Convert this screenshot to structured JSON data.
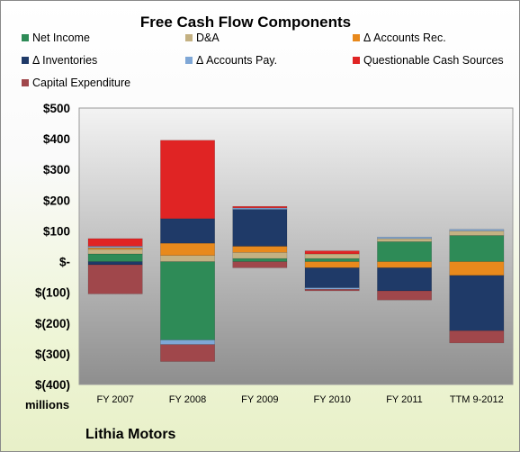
{
  "chart_data": {
    "type": "bar",
    "stacked": true,
    "title": "Free Cash Flow Components",
    "categories": [
      "FY 2007",
      "FY 2008",
      "FY 2009",
      "FY 2010",
      "FY 2011",
      "TTM 9-2012"
    ],
    "series": [
      {
        "name": "Net Income",
        "color": "#2e8b57",
        "values": [
          25,
          -255,
          10,
          10,
          65,
          85
        ]
      },
      {
        "name": "D&A",
        "color": "#c4b182",
        "values": [
          15,
          20,
          20,
          15,
          10,
          15
        ]
      },
      {
        "name": "Δ Accounts Rec.",
        "color": "#e8891c",
        "values": [
          5,
          40,
          20,
          -20,
          -20,
          -45
        ]
      },
      {
        "name": "Δ Inventories",
        "color": "#1f3a68",
        "values": [
          -10,
          80,
          120,
          -65,
          -75,
          -180
        ]
      },
      {
        "name": "Δ Accounts Pay.",
        "color": "#7fa7d6",
        "values": [
          5,
          -15,
          5,
          -5,
          5,
          5
        ]
      },
      {
        "name": "Questionable Cash Sources",
        "color": "#e02424",
        "values": [
          25,
          255,
          5,
          10,
          0,
          0
        ]
      },
      {
        "name": "Capital Expenditure",
        "color": "#a0474b",
        "values": [
          -95,
          -55,
          -20,
          -5,
          -30,
          -40
        ]
      }
    ],
    "yticks": [
      "$500",
      "$400",
      "$300",
      "$200",
      "$100",
      "$-",
      "$(100)",
      "$(200)",
      "$(300)",
      "$(400)"
    ],
    "ylim": [
      -400,
      500
    ],
    "units_label": "millions",
    "grid": false,
    "legend_position": "top"
  },
  "company_name": "Lithia Motors"
}
